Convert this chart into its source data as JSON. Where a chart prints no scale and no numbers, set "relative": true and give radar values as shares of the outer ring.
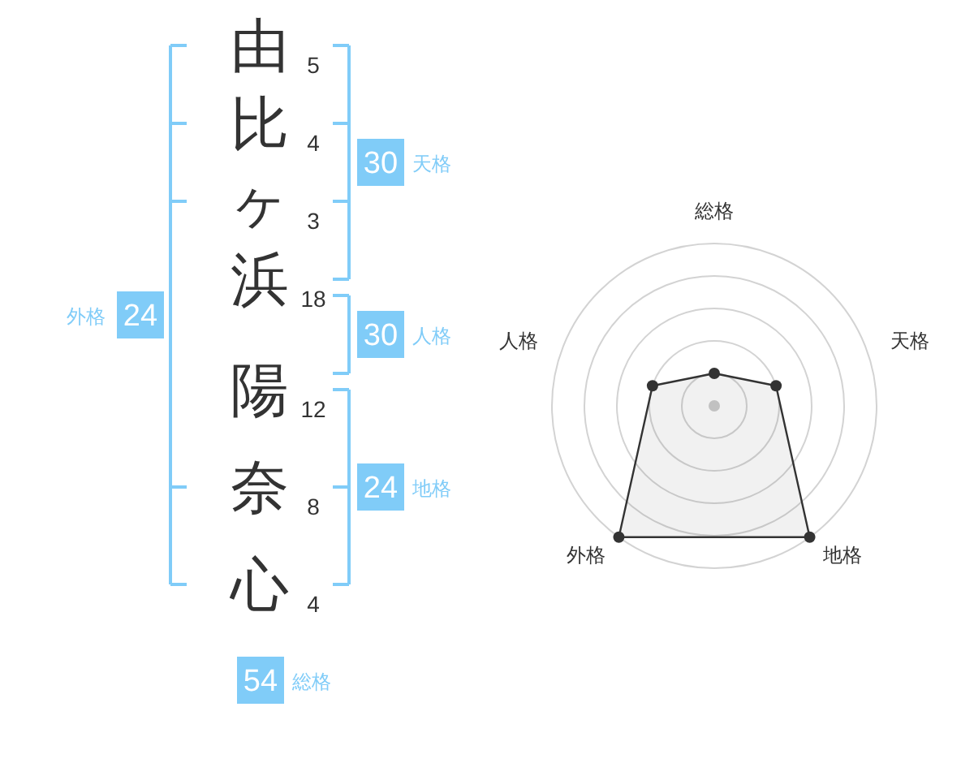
{
  "chart_data": [
    {
      "type": "other",
      "categories": [
        "由",
        "比",
        "ヶ",
        "浜",
        "陽",
        "奈",
        "心"
      ],
      "values": [
        5,
        4,
        3,
        18,
        12,
        8,
        4
      ],
      "data_labels": true,
      "color": "#80ccf8",
      "annotations": [
        "30",
        "天格",
        "30",
        "人格",
        "24",
        "地格",
        "24",
        "外格",
        "54",
        "総格"
      ]
    },
    {
      "type": "radar",
      "categories": [
        "総格",
        "天格",
        "地格",
        "外格",
        "人格"
      ],
      "relative": true,
      "grid": true,
      "marker": "circle",
      "series": [
        {
          "color": "#333333",
          "values": [
            0.2,
            0.4,
            1,
            1,
            0.4
          ]
        }
      ]
    }
  ]
}
